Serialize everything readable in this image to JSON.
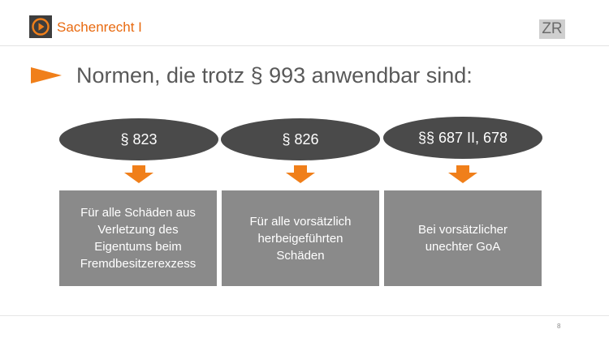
{
  "header": {
    "course_title": "Sachenrecht I",
    "badge": "ZR",
    "logo_icon": "play-button-icon",
    "accent_color": "#e86a10"
  },
  "slide": {
    "title": "Normen, die trotz § 993 anwendbar sind:",
    "columns": [
      {
        "norm": "§ 823",
        "description_lines": [
          "Für alle Schäden aus",
          "Verletzung des",
          "Eigentums beim",
          "Fremdbesitzerexzess"
        ]
      },
      {
        "norm": "§ 826",
        "description_lines": [
          "Für alle vorsätzlich",
          "herbeigeführten",
          "Schäden"
        ]
      },
      {
        "norm": "§§ 687 II, 678",
        "description_lines": [
          "Bei vorsätzlicher",
          "unechter GoA"
        ]
      }
    ]
  },
  "footer": {
    "page_number": "8"
  },
  "colors": {
    "ellipse": "#4a4a4a",
    "box": "#8a8a8a",
    "arrow": "#f07f1a",
    "title_text": "#595959"
  }
}
